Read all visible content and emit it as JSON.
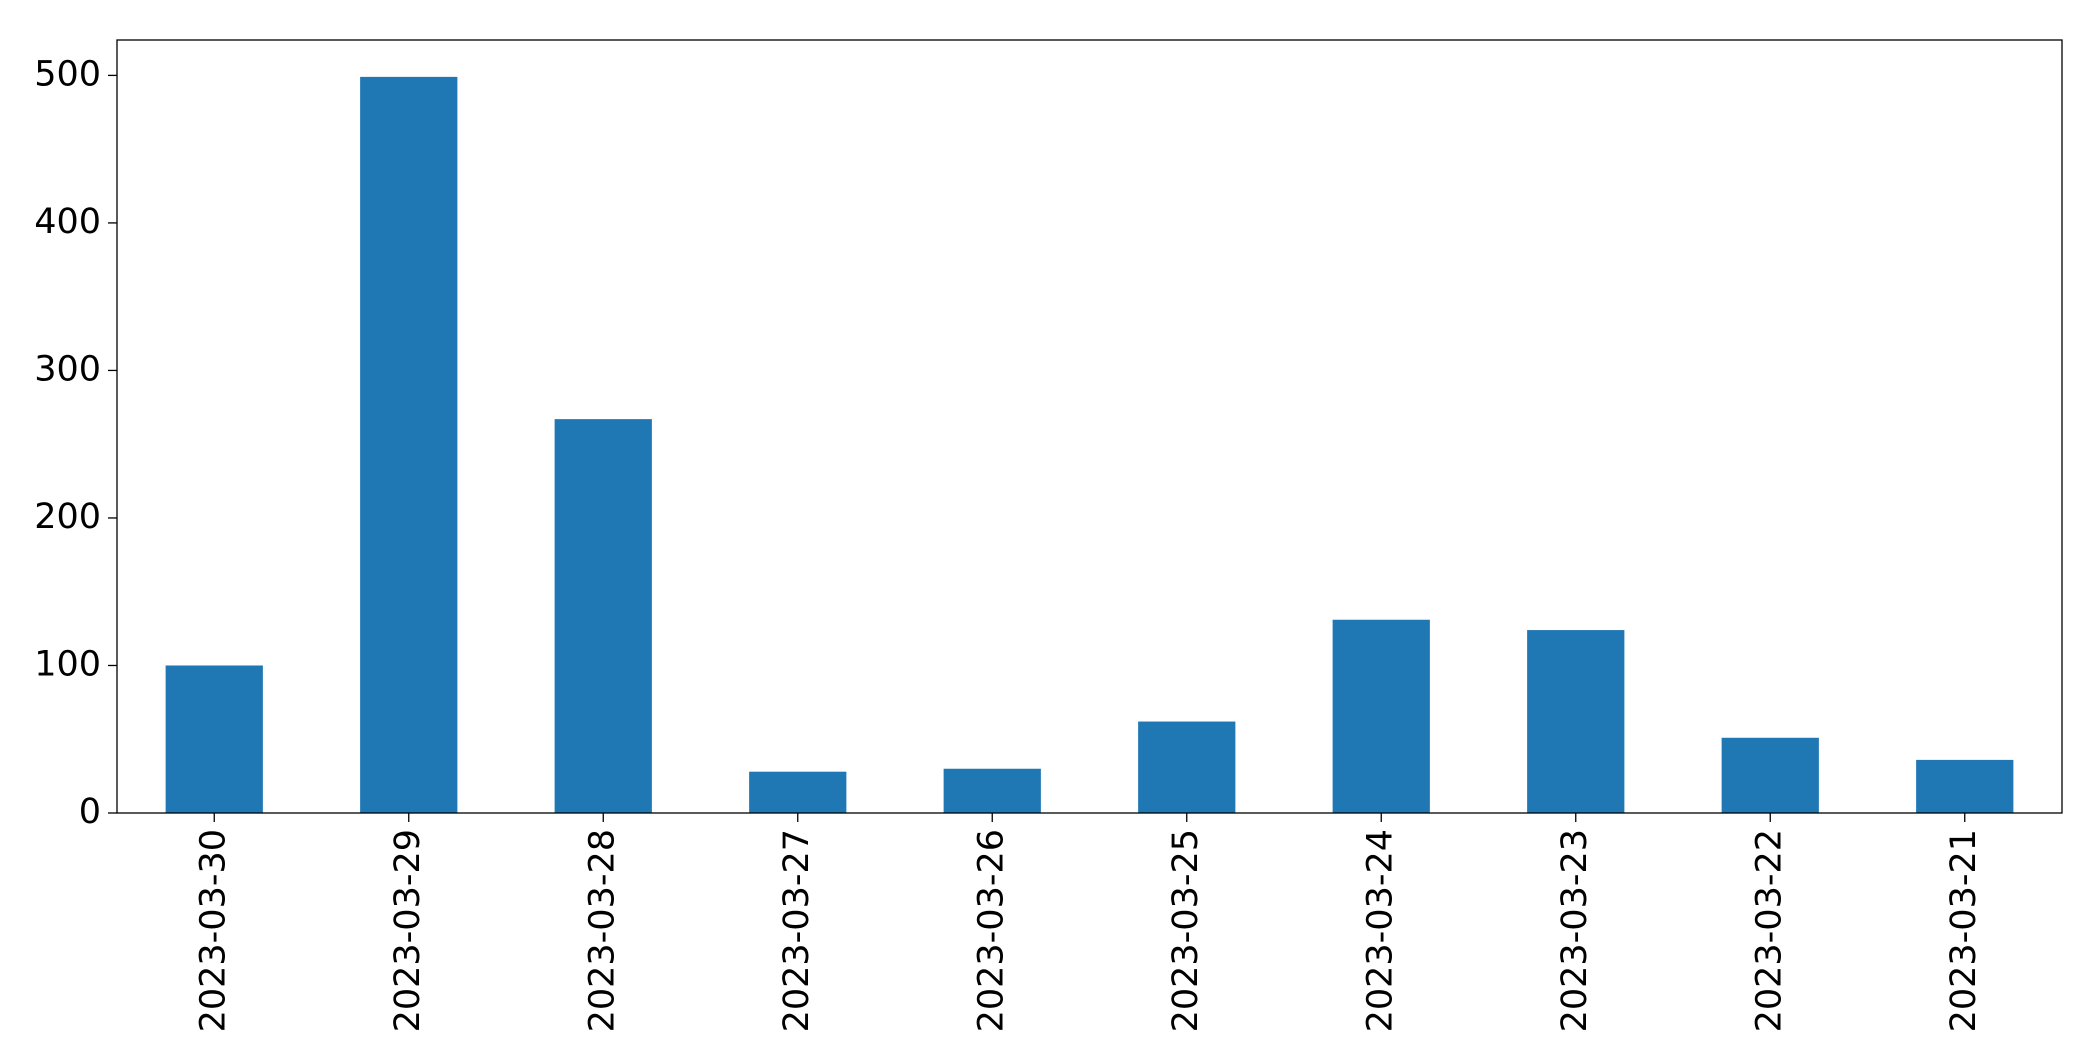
{
  "chart_data": {
    "type": "bar",
    "categories": [
      "2023-03-30",
      "2023-03-29",
      "2023-03-28",
      "2023-03-27",
      "2023-03-26",
      "2023-03-25",
      "2023-03-24",
      "2023-03-23",
      "2023-03-22",
      "2023-03-21"
    ],
    "values": [
      100,
      499,
      267,
      28,
      30,
      62,
      131,
      124,
      51,
      36
    ],
    "color": "#1f77b4",
    "ylim": [
      0,
      524
    ],
    "yticks": [
      0,
      100,
      200,
      300,
      400,
      500
    ],
    "grid": false
  }
}
